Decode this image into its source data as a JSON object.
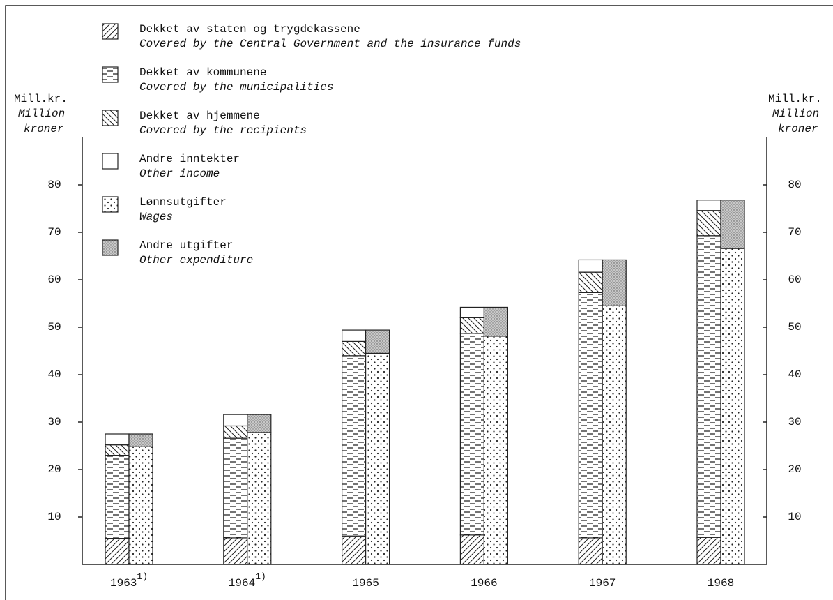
{
  "chart_data": {
    "type": "grouped_stacked_bar",
    "y_label": "Mill.kr.",
    "y_label_en": [
      "Million",
      "kroner"
    ],
    "categories": [
      "1963",
      "1964",
      "1965",
      "1966",
      "1967",
      "1968"
    ],
    "category_notes": [
      "1)",
      "1)",
      null,
      null,
      null,
      null
    ],
    "series": [
      {
        "name": "Dekket av staten og trygdekassene",
        "name_en": "Covered by the Central Government and the insurance funds",
        "stack": "income",
        "pattern": "diagonal",
        "values": [
          5.5,
          5.6,
          6.0,
          6.2,
          5.6,
          5.7
        ]
      },
      {
        "name": "Dekket av kommunene",
        "name_en": "Covered by the municipalities",
        "stack": "income",
        "pattern": "dashes",
        "values": [
          17.5,
          21.0,
          38.0,
          42.5,
          51.7,
          63.6
        ]
      },
      {
        "name": "Dekket av hjemmene",
        "name_en": "Covered by the recipients",
        "stack": "income",
        "pattern": "backdiagonal",
        "values": [
          2.2,
          2.6,
          3.0,
          3.3,
          4.3,
          5.3
        ]
      },
      {
        "name": "Andre inntekter",
        "name_en": "Other income",
        "stack": "income",
        "pattern": "none",
        "values": [
          2.3,
          2.4,
          2.4,
          2.2,
          2.6,
          2.2
        ]
      },
      {
        "name": "Lønnsutgifter",
        "name_en": "Wages",
        "stack": "expenditure",
        "pattern": "dots",
        "values": [
          24.8,
          27.8,
          44.5,
          48.1,
          54.5,
          66.6
        ]
      },
      {
        "name": "Andre utgifter",
        "name_en": "Other expenditure",
        "stack": "expenditure",
        "pattern": "stipple",
        "values": [
          2.7,
          3.8,
          4.9,
          6.1,
          9.7,
          10.2
        ]
      }
    ],
    "ylim": [
      0,
      90
    ],
    "yticks": [
      10,
      20,
      30,
      40,
      50,
      60,
      70,
      80
    ],
    "y2lim": [
      0,
      90
    ],
    "y2ticks": [
      10,
      20,
      30,
      40,
      50,
      60,
      70,
      80
    ],
    "stack_order": [
      "income",
      "expenditure"
    ]
  }
}
